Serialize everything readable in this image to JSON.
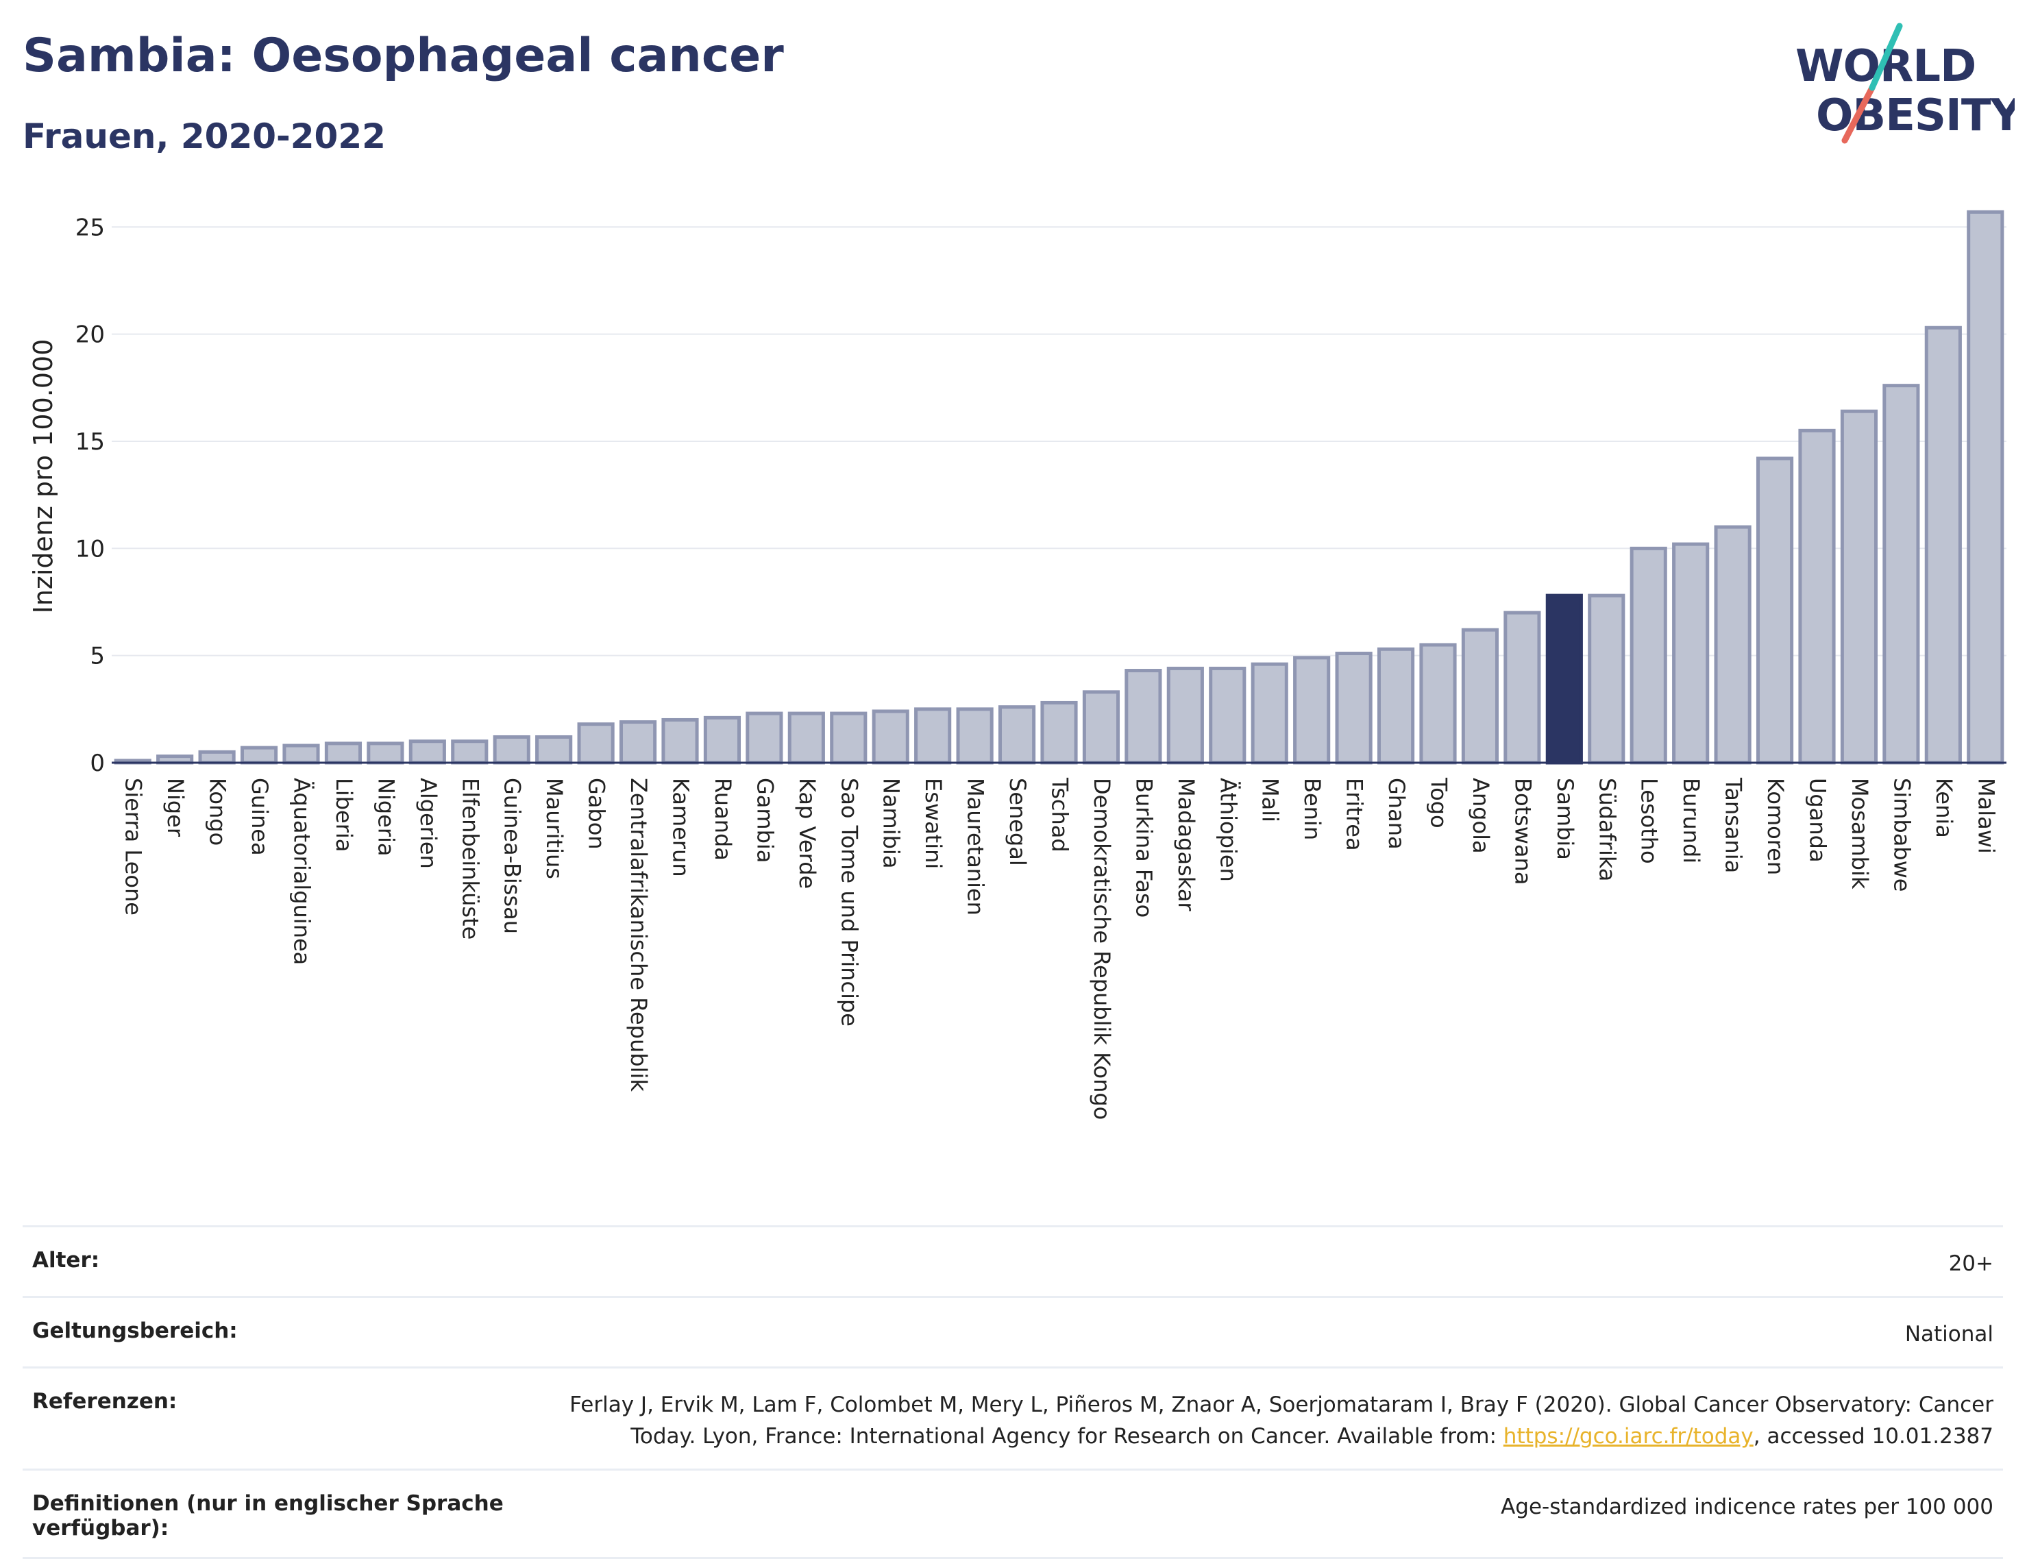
{
  "header": {
    "title": "Sambia: Oesophageal cancer",
    "subtitle": "Frauen, 2020-2022",
    "logo_line1": "WORLD",
    "logo_line2": "OBESITY"
  },
  "chart_data": {
    "type": "bar",
    "ylabel": "Inzidenz pro 100.000",
    "ylim": [
      0,
      26
    ],
    "yticks": [
      0,
      5,
      10,
      15,
      20,
      25
    ],
    "grid": true,
    "highlight": "Sambia",
    "colors": {
      "bar": "#bec3d2",
      "bar_edge": "#8f96b2",
      "highlight": "#2b3563"
    },
    "categories": [
      "Sierra Leone",
      "Niger",
      "Kongo",
      "Guinea",
      "Äquatorialguinea",
      "Liberia",
      "Nigeria",
      "Algerien",
      "Elfenbeinküste",
      "Guinea-Bissau",
      "Mauritius",
      "Gabon",
      "Zentralafrikanische Republik",
      "Kamerun",
      "Ruanda",
      "Gambia",
      "Kap Verde",
      "Sao Tome und Principe",
      "Namibia",
      "Eswatini",
      "Mauretanien",
      "Senegal",
      "Tschad",
      "Demokratische Republik Kongo",
      "Burkina Faso",
      "Madagaskar",
      "Äthiopien",
      "Mali",
      "Benin",
      "Eritrea",
      "Ghana",
      "Togo",
      "Angola",
      "Botswana",
      "Sambia",
      "Südafrika",
      "Lesotho",
      "Burundi",
      "Tansania",
      "Komoren",
      "Uganda",
      "Mosambik",
      "Simbabwe",
      "Kenia",
      "Malawi"
    ],
    "values": [
      0.1,
      0.3,
      0.5,
      0.7,
      0.8,
      0.9,
      0.9,
      1.0,
      1.0,
      1.2,
      1.2,
      1.8,
      1.9,
      2.0,
      2.1,
      2.3,
      2.3,
      2.3,
      2.4,
      2.5,
      2.5,
      2.6,
      2.8,
      3.3,
      4.3,
      4.4,
      4.4,
      4.6,
      4.9,
      5.1,
      5.3,
      5.5,
      6.2,
      7.0,
      7.8,
      7.8,
      10.0,
      10.2,
      11.0,
      14.2,
      15.5,
      16.4,
      17.6,
      20.3,
      25.7
    ]
  },
  "meta": {
    "age_label": "Alter:",
    "age_value": "20+",
    "scope_label": "Geltungsbereich:",
    "scope_value": "National",
    "ref_label": "Referenzen:",
    "ref_text_1": "Ferlay J, Ervik M, Lam F, Colombet M, Mery L, Piñeros M, Znaor A, Soerjomataram I, Bray F (2020). Global Cancer Observatory: Cancer Today. Lyon, France: International Agency for Research on Cancer. Available from: ",
    "ref_link": "https://gco.iarc.fr/today",
    "ref_text_2": ", accessed 10.01.2387",
    "def_label": "Definitionen (nur in englischer Sprache verfügbar):",
    "def_value": "Age-standardized indicence rates per 100 000"
  }
}
